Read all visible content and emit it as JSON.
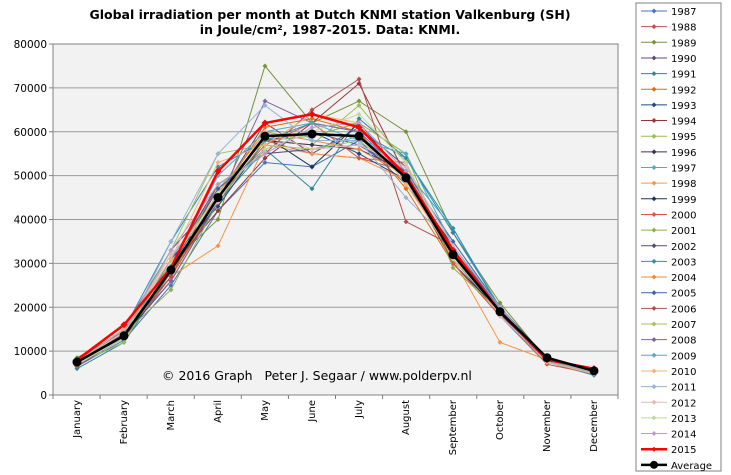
{
  "chart_data": {
    "type": "line",
    "title": "Global irradiation per month at Dutch KNMI station Valkenburg (SH)",
    "subtitle": "in Joule/cm², 1987-2015. Data: KNMI.",
    "xlabel": "",
    "ylabel": "",
    "categories": [
      "January",
      "February",
      "March",
      "April",
      "May",
      "June",
      "July",
      "August",
      "September",
      "October",
      "November",
      "December"
    ],
    "ylim": [
      0,
      80000
    ],
    "yticks": [
      "0",
      "10000",
      "20000",
      "30000",
      "40000",
      "50000",
      "60000",
      "70000",
      "80000"
    ],
    "grid": "horizontal",
    "legend_position": "right",
    "annotation": "© 2016 Graph   Peter J. Segaar / www.polderpv.nl",
    "series": [
      {
        "name": "1987",
        "color": "#4472c4",
        "values": [
          6500,
          12500,
          25000,
          42000,
          53000,
          52000,
          58000,
          48000,
          33000,
          20000,
          8000,
          5000
        ]
      },
      {
        "name": "1988",
        "color": "#c0504d",
        "values": [
          7500,
          13000,
          27000,
          44000,
          58000,
          55000,
          54000,
          51000,
          32000,
          19000,
          8500,
          5500
        ]
      },
      {
        "name": "1989",
        "color": "#77933c",
        "values": [
          8500,
          14500,
          30000,
          40000,
          75000,
          62000,
          67000,
          60000,
          37000,
          21000,
          8000,
          5000
        ]
      },
      {
        "name": "1990",
        "color": "#604a7b",
        "values": [
          7000,
          15000,
          33000,
          45000,
          62000,
          55000,
          61000,
          52000,
          34000,
          19500,
          8000,
          4800
        ]
      },
      {
        "name": "1991",
        "color": "#31859c",
        "values": [
          6000,
          12000,
          28000,
          44000,
          56000,
          47000,
          63000,
          54000,
          37000,
          20000,
          7500,
          4500
        ]
      },
      {
        "name": "1992",
        "color": "#e46c0a",
        "values": [
          7000,
          14000,
          27000,
          45000,
          61000,
          63000,
          60000,
          47000,
          30000,
          18000,
          8000,
          5500
        ]
      },
      {
        "name": "1993",
        "color": "#1f497d",
        "values": [
          7500,
          13000,
          31000,
          43000,
          58000,
          60000,
          55000,
          49000,
          31000,
          18500,
          7800,
          5000
        ]
      },
      {
        "name": "1994",
        "color": "#953735",
        "values": [
          7200,
          14000,
          29000,
          42000,
          54000,
          62000,
          71000,
          50000,
          30000,
          19000,
          8000,
          5200
        ]
      },
      {
        "name": "1995",
        "color": "#9bbb59",
        "values": [
          7000,
          12000,
          30000,
          47000,
          58000,
          57000,
          66000,
          53000,
          31000,
          19500,
          8200,
          5000
        ]
      },
      {
        "name": "1996",
        "color": "#403151",
        "values": [
          6500,
          13500,
          26000,
          44000,
          58000,
          57000,
          56000,
          51000,
          30000,
          19000,
          7500,
          5000
        ]
      },
      {
        "name": "1997",
        "color": "#4bacc6",
        "values": [
          7000,
          13000,
          31000,
          47000,
          55000,
          56000,
          59000,
          51000,
          38000,
          20000,
          8000,
          4700
        ]
      },
      {
        "name": "1998",
        "color": "#f79646",
        "values": [
          7500,
          14000,
          27000,
          34000,
          57000,
          55000,
          54000,
          49000,
          31000,
          12000,
          8000,
          5200
        ]
      },
      {
        "name": "1999",
        "color": "#17375e",
        "values": [
          6800,
          13000,
          29000,
          45000,
          59000,
          52000,
          62000,
          49000,
          34000,
          18000,
          7800,
          5000
        ]
      },
      {
        "name": "2000",
        "color": "#d9534f",
        "values": [
          6500,
          13500,
          28000,
          45000,
          57000,
          62000,
          54000,
          53000,
          30000,
          18000,
          7000,
          4800
        ]
      },
      {
        "name": "2001",
        "color": "#8fb04a",
        "values": [
          7000,
          14000,
          24000,
          44000,
          58000,
          59000,
          62000,
          55000,
          29000,
          19000,
          8000,
          5000
        ]
      },
      {
        "name": "2002",
        "color": "#5f497a",
        "values": [
          6800,
          13000,
          30000,
          48000,
          55000,
          56000,
          57000,
          50000,
          33000,
          18500,
          7500,
          4900
        ]
      },
      {
        "name": "2003",
        "color": "#2e8fb0",
        "values": [
          7800,
          15000,
          35000,
          52000,
          58000,
          62000,
          60000,
          54000,
          38000,
          19500,
          8200,
          5200
        ]
      },
      {
        "name": "2004",
        "color": "#e98b3c",
        "values": [
          7000,
          14000,
          28000,
          46000,
          60000,
          58000,
          56000,
          50000,
          33000,
          18000,
          7800,
          5100
        ]
      },
      {
        "name": "2005",
        "color": "#3a66a8",
        "values": [
          7500,
          13500,
          29000,
          47000,
          56000,
          60000,
          57000,
          51000,
          35000,
          20000,
          8500,
          5300
        ]
      },
      {
        "name": "2006",
        "color": "#b0504c",
        "values": [
          6500,
          14000,
          27000,
          48000,
          55000,
          65000,
          72000,
          39500,
          34000,
          20000,
          8000,
          5000
        ]
      },
      {
        "name": "2007",
        "color": "#a4c263",
        "values": [
          7000,
          13000,
          33000,
          55000,
          57000,
          56000,
          58000,
          50000,
          33000,
          19000,
          8000,
          5000
        ]
      },
      {
        "name": "2008",
        "color": "#8064a2",
        "values": [
          7200,
          14000,
          26000,
          44000,
          67000,
          62000,
          60000,
          50000,
          33000,
          19000,
          8000,
          5000
        ]
      },
      {
        "name": "2009",
        "color": "#4bacc6",
        "values": [
          7000,
          13500,
          29000,
          50000,
          60000,
          62000,
          58000,
          55000,
          34000,
          18000,
          7500,
          4800
        ]
      },
      {
        "name": "2010",
        "color": "#f9b074",
        "values": [
          7500,
          15000,
          31000,
          53000,
          57000,
          64000,
          62000,
          48000,
          32000,
          19000,
          7800,
          5000
        ]
      },
      {
        "name": "2011",
        "color": "#95b3d7",
        "values": [
          6800,
          13500,
          35000,
          55000,
          66000,
          58000,
          58000,
          45000,
          34000,
          20000,
          7800,
          5200
        ]
      },
      {
        "name": "2012",
        "color": "#e6b9b8",
        "values": [
          7500,
          14500,
          32000,
          44000,
          60000,
          56000,
          57000,
          52000,
          34000,
          18000,
          8000,
          5000
        ]
      },
      {
        "name": "2013",
        "color": "#c3d69b",
        "values": [
          7000,
          13000,
          30000,
          46000,
          56000,
          60000,
          64000,
          53000,
          31000,
          19000,
          7500,
          4800
        ]
      },
      {
        "name": "2014",
        "color": "#b3a2c7",
        "values": [
          7500,
          14500,
          33000,
          48000,
          55000,
          61000,
          62000,
          51000,
          33000,
          19500,
          8000,
          5000
        ]
      },
      {
        "name": "2015",
        "color": "#ff0000",
        "values": [
          8000,
          16000,
          29000,
          51000,
          62000,
          64000,
          61000,
          50000,
          33000,
          19000,
          8000,
          6000
        ],
        "highlight": true
      },
      {
        "name": "Average",
        "color": "#000000",
        "values": [
          7500,
          13500,
          28500,
          45000,
          59000,
          59500,
          59000,
          49500,
          32000,
          19000,
          8500,
          5500
        ],
        "highlight": true
      }
    ]
  },
  "legend": {
    "title": ""
  }
}
